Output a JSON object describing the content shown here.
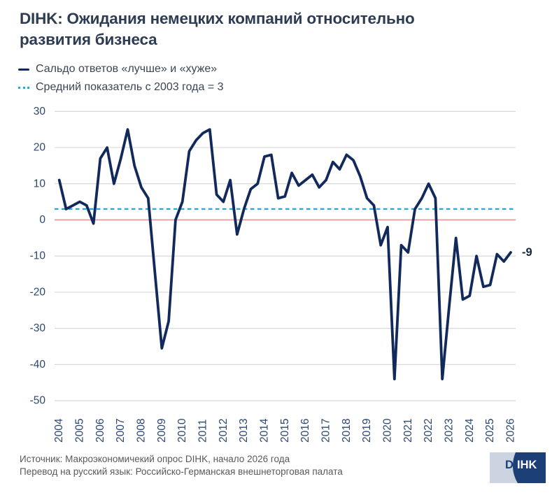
{
  "title": {
    "full": "DIHK: Ожидания немецких компаний относительно развития бизнеса",
    "lines": [
      "DIHK: Ожидания немецких компаний относительно",
      "развития бизнеса"
    ]
  },
  "legend": {
    "items": [
      {
        "label": "Сальдо ответов «лучше» и «хуже»",
        "color": "#12295b",
        "style": "solid"
      },
      {
        "label": "Средний показатель с 2003 года = 3",
        "color": "#2aa7d6",
        "style": "dotted"
      }
    ]
  },
  "chart_data": {
    "type": "line",
    "title": "DIHK: Ожидания немецких компаний относительно развития бизнеса",
    "series_name": "Сальдо ответов «лучше» и «хуже»",
    "start_year": 2004,
    "surveys_per_year": 3,
    "x_note": "три опроса в год, последний пункт — начало 2026 года",
    "values": [
      11,
      3,
      4,
      5,
      4,
      -1,
      17,
      20,
      10,
      17,
      25,
      15,
      9,
      6,
      -15,
      -35.5,
      -28,
      0,
      5,
      19,
      22,
      24,
      25,
      7,
      5,
      11,
      -4,
      3,
      8.5,
      10,
      17.5,
      18,
      6,
      6.5,
      13,
      9.5,
      11,
      12.5,
      9,
      11,
      16,
      14,
      18,
      16.5,
      12,
      6,
      4,
      -7,
      -2,
      -44,
      -7,
      -9,
      3,
      6,
      10,
      6,
      -44,
      -24,
      -5,
      -22,
      -21,
      -10,
      -18.5,
      -18,
      -9.5,
      -11.5,
      -9
    ],
    "year_ticks": [
      "2004",
      "2005",
      "2006",
      "2007",
      "2008",
      "2009",
      "2010",
      "2011",
      "2012",
      "2013",
      "2014",
      "2015",
      "2016",
      "2017",
      "2018",
      "2019",
      "2020",
      "2021",
      "2022",
      "2023",
      "2024",
      "2025",
      "2026"
    ],
    "y_ticks": [
      30,
      20,
      10,
      0,
      -10,
      -20,
      -30,
      -40,
      -50
    ],
    "ylim": [
      -50,
      30
    ],
    "mean_value": 3,
    "mean_label": "Средний показатель с 2003 года = 3",
    "zero_line_value": 0,
    "end_label": "-9",
    "grid": "horizontal",
    "colors": {
      "series": "#12295b",
      "mean_line": "#2aa7d6",
      "zero_line": "#e59a98",
      "gridline": "#d9d9d9",
      "axis_text": "#2c4770",
      "end_label": "#16233f"
    }
  },
  "footer": {
    "source": "Источник: Макроэкономичекий опрос DIHK, начало 2026 года",
    "translation": "Перевод на русский язык: Российско-Германская внешнеторговая палата"
  },
  "logo": {
    "part1": "D",
    "part2": "IHK",
    "light_color": "#ccd4e2",
    "dark_color": "#1c3f77"
  }
}
